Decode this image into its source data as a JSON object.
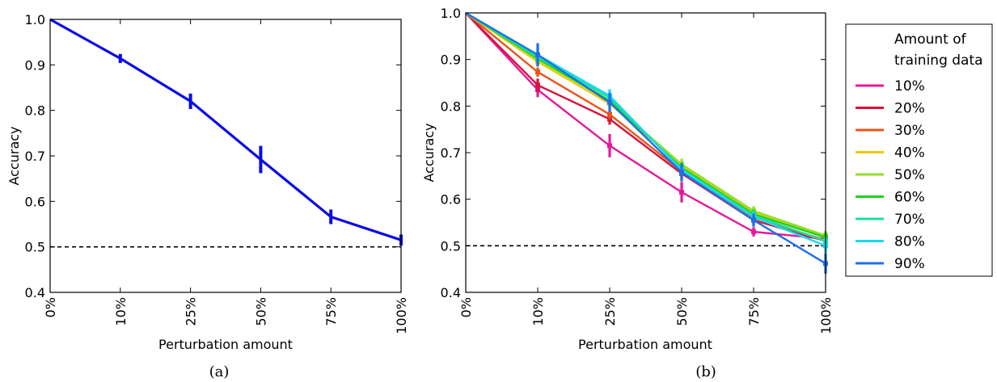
{
  "chart_data": [
    {
      "type": "line",
      "panel": "(a)",
      "caption": "(a)",
      "xlabel": "Perturbation amount",
      "ylabel": "Accuracy",
      "categories": [
        "0%",
        "10%",
        "25%",
        "50%",
        "75%",
        "100%"
      ],
      "ylim": [
        0.4,
        1.0
      ],
      "yticks": [
        "0.4",
        "0.5",
        "0.6",
        "0.7",
        "0.8",
        "0.9",
        "1.0"
      ],
      "reference_line": 0.5,
      "grid": false,
      "series": [
        {
          "color": "#0a0ae6",
          "values": [
            1.0,
            0.914,
            0.82,
            0.692,
            0.566,
            0.515
          ],
          "errors": [
            0.0,
            0.01,
            0.017,
            0.03,
            0.016,
            0.012
          ]
        }
      ]
    },
    {
      "type": "line",
      "panel": "(b)",
      "caption": "(b)",
      "xlabel": "Perturbation amount",
      "ylabel": "Accuracy",
      "categories": [
        "0%",
        "10%",
        "25%",
        "50%",
        "75%",
        "100%"
      ],
      "ylim": [
        0.4,
        1.0
      ],
      "yticks": [
        "0.4",
        "0.5",
        "0.6",
        "0.7",
        "0.8",
        "0.9",
        "1.0"
      ],
      "reference_line": 0.5,
      "grid": false,
      "legend": {
        "title_line1": "Amount of",
        "title_line2": "training data",
        "placement": "outside right"
      },
      "series": [
        {
          "name": "10%",
          "color": "#e6199a",
          "values": [
            1.0,
            0.835,
            0.715,
            0.615,
            0.53,
            0.515
          ],
          "errors": [
            0,
            0.016,
            0.025,
            0.022,
            0.01,
            0.01
          ]
        },
        {
          "name": "20%",
          "color": "#d6143c",
          "values": [
            1.0,
            0.845,
            0.772,
            0.655,
            0.555,
            0.51
          ],
          "errors": [
            0,
            0.014,
            0.012,
            0.014,
            0.012,
            0.01
          ]
        },
        {
          "name": "30%",
          "color": "#e8561a",
          "values": [
            1.0,
            0.873,
            0.782,
            0.66,
            0.56,
            0.512
          ],
          "errors": [
            0,
            0.01,
            0.01,
            0.01,
            0.01,
            0.01
          ]
        },
        {
          "name": "40%",
          "color": "#f0c808",
          "values": [
            1.0,
            0.895,
            0.805,
            0.672,
            0.572,
            0.52
          ],
          "errors": [
            0,
            0.01,
            0.01,
            0.01,
            0.012,
            0.01
          ]
        },
        {
          "name": "50%",
          "color": "#90e02a",
          "values": [
            1.0,
            0.9,
            0.81,
            0.675,
            0.575,
            0.522
          ],
          "errors": [
            0,
            0.01,
            0.012,
            0.012,
            0.01,
            0.01
          ]
        },
        {
          "name": "60%",
          "color": "#1ed21e",
          "values": [
            1.0,
            0.902,
            0.812,
            0.668,
            0.568,
            0.518
          ],
          "errors": [
            0,
            0.01,
            0.01,
            0.01,
            0.01,
            0.01
          ]
        },
        {
          "name": "70%",
          "color": "#19e0a0",
          "values": [
            1.0,
            0.905,
            0.818,
            0.665,
            0.565,
            0.51
          ],
          "errors": [
            0,
            0.012,
            0.012,
            0.012,
            0.01,
            0.01
          ]
        },
        {
          "name": "80%",
          "color": "#19d9f0",
          "values": [
            1.0,
            0.91,
            0.822,
            0.662,
            0.562,
            0.5
          ],
          "errors": [
            0,
            0.015,
            0.014,
            0.014,
            0.012,
            0.015
          ]
        },
        {
          "name": "90%",
          "color": "#1f6fe5",
          "values": [
            1.0,
            0.91,
            0.808,
            0.658,
            0.555,
            0.462
          ],
          "errors": [
            0,
            0.025,
            0.02,
            0.02,
            0.014,
            0.022
          ]
        }
      ]
    }
  ]
}
